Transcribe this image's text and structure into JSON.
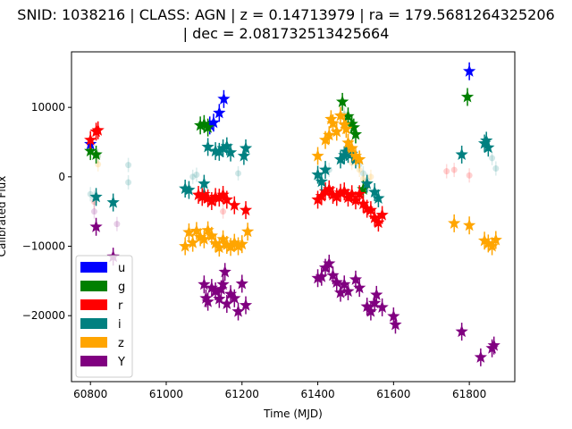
{
  "chart_data": {
    "type": "scatter",
    "title_line1": "SNID: 1038216 | CLASS: AGN | z = 0.14713979 | ra = 179.5681264325206",
    "title_line2": "| dec = 2.081732513425664",
    "xlabel": "Time (MJD)",
    "ylabel": "Calibrated Flux",
    "xlim": [
      60750,
      61920
    ],
    "ylim": [
      -29500,
      18000
    ],
    "xticks": [
      60800,
      61000,
      61200,
      61400,
      61600,
      61800
    ],
    "yticks": [
      -20000,
      -10000,
      0,
      10000
    ],
    "ytick_labels": [
      "−20000",
      "−10000",
      "0",
      "10000"
    ],
    "grid": false,
    "legend_position": "lower-left",
    "series": [
      {
        "name": "u",
        "color": "#0000ff",
        "detections": [
          [
            60800,
            4700
          ],
          [
            61115,
            7400
          ],
          [
            61125,
            7800
          ],
          [
            61140,
            9200
          ],
          [
            61152,
            11200
          ],
          [
            61800,
            15200
          ]
        ],
        "faint": [
          [
            60800,
            5000
          ]
        ]
      },
      {
        "name": "g",
        "color": "#008000",
        "detections": [
          [
            60800,
            3700
          ],
          [
            60815,
            3200
          ],
          [
            61090,
            7400
          ],
          [
            61100,
            7600
          ],
          [
            61110,
            7100
          ],
          [
            61465,
            10800
          ],
          [
            61480,
            8700
          ],
          [
            61490,
            7600
          ],
          [
            61495,
            7100
          ],
          [
            61500,
            6100
          ],
          [
            61520,
            -1800
          ],
          [
            61795,
            11500
          ]
        ],
        "faint": [
          [
            60820,
            3000
          ],
          [
            61470,
            9000
          ]
        ]
      },
      {
        "name": "r",
        "color": "#ff0000",
        "detections": [
          [
            60800,
            5300
          ],
          [
            60815,
            6500
          ],
          [
            60820,
            6700
          ],
          [
            61085,
            -2600
          ],
          [
            61095,
            -2900
          ],
          [
            61100,
            -2500
          ],
          [
            61110,
            -3100
          ],
          [
            61120,
            -3500
          ],
          [
            61130,
            -2900
          ],
          [
            61140,
            -3000
          ],
          [
            61150,
            -2600
          ],
          [
            61160,
            -3300
          ],
          [
            61180,
            -4100
          ],
          [
            61210,
            -4800
          ],
          [
            61400,
            -3300
          ],
          [
            61410,
            -2800
          ],
          [
            61420,
            -2100
          ],
          [
            61430,
            -1800
          ],
          [
            61440,
            -2600
          ],
          [
            61450,
            -2900
          ],
          [
            61460,
            -2300
          ],
          [
            61470,
            -2100
          ],
          [
            61480,
            -3000
          ],
          [
            61490,
            -2500
          ],
          [
            61500,
            -3400
          ],
          [
            61510,
            -2500
          ],
          [
            61520,
            -3900
          ],
          [
            61530,
            -4600
          ],
          [
            61540,
            -4800
          ],
          [
            61550,
            -5900
          ],
          [
            61560,
            -6600
          ],
          [
            61570,
            -5500
          ]
        ],
        "faint": [
          [
            60810,
            -3600
          ],
          [
            61150,
            -5000
          ],
          [
            61740,
            800
          ],
          [
            61760,
            1000
          ],
          [
            61800,
            200
          ]
        ]
      },
      {
        "name": "i",
        "color": "#008080",
        "detections": [
          [
            60815,
            -2900
          ],
          [
            60860,
            -3700
          ],
          [
            61050,
            -1700
          ],
          [
            61060,
            -1900
          ],
          [
            61100,
            -1000
          ],
          [
            61110,
            4300
          ],
          [
            61130,
            3700
          ],
          [
            61140,
            3600
          ],
          [
            61150,
            4100
          ],
          [
            61160,
            4400
          ],
          [
            61170,
            3500
          ],
          [
            61205,
            3000
          ],
          [
            61210,
            4100
          ],
          [
            61400,
            300
          ],
          [
            61410,
            -700
          ],
          [
            61420,
            1000
          ],
          [
            61460,
            2500
          ],
          [
            61470,
            3100
          ],
          [
            61475,
            3600
          ],
          [
            61480,
            3300
          ],
          [
            61485,
            4000
          ],
          [
            61490,
            3300
          ],
          [
            61500,
            2500
          ],
          [
            61530,
            -1000
          ],
          [
            61550,
            -2200
          ],
          [
            61560,
            -3100
          ],
          [
            61780,
            3200
          ],
          [
            61840,
            4800
          ],
          [
            61845,
            5200
          ],
          [
            61850,
            4200
          ]
        ],
        "faint": [
          [
            60800,
            -2500
          ],
          [
            60810,
            -3000
          ],
          [
            60900,
            1700
          ],
          [
            60900,
            -800
          ],
          [
            61060,
            -1700
          ],
          [
            61070,
            0
          ],
          [
            61080,
            300
          ],
          [
            61190,
            500
          ],
          [
            61400,
            0
          ],
          [
            61430,
            1000
          ],
          [
            61510,
            1800
          ],
          [
            61520,
            500
          ],
          [
            61530,
            -500
          ],
          [
            61860,
            2700
          ],
          [
            61870,
            1200
          ]
        ]
      },
      {
        "name": "z",
        "color": "#ffa500",
        "detections": [
          [
            61050,
            -10000
          ],
          [
            61060,
            -8000
          ],
          [
            61070,
            -9500
          ],
          [
            61080,
            -7800
          ],
          [
            61090,
            -8700
          ],
          [
            61100,
            -9000
          ],
          [
            61110,
            -7700
          ],
          [
            61120,
            -8500
          ],
          [
            61130,
            -9600
          ],
          [
            61140,
            -10200
          ],
          [
            61150,
            -9000
          ],
          [
            61160,
            -9800
          ],
          [
            61170,
            -10100
          ],
          [
            61180,
            -9500
          ],
          [
            61190,
            -10000
          ],
          [
            61200,
            -9700
          ],
          [
            61215,
            -7900
          ],
          [
            61400,
            3000
          ],
          [
            61420,
            5300
          ],
          [
            61430,
            6000
          ],
          [
            61435,
            8300
          ],
          [
            61440,
            7700
          ],
          [
            61450,
            6500
          ],
          [
            61460,
            8800
          ],
          [
            61470,
            7500
          ],
          [
            61475,
            6900
          ],
          [
            61480,
            4900
          ],
          [
            61490,
            4100
          ],
          [
            61500,
            3000
          ],
          [
            61510,
            2500
          ],
          [
            61760,
            -6700
          ],
          [
            61800,
            -7000
          ],
          [
            61840,
            -9200
          ],
          [
            61850,
            -9600
          ],
          [
            61860,
            -10000
          ],
          [
            61870,
            -9100
          ]
        ],
        "faint": [
          [
            60820,
            1800
          ],
          [
            61490,
            2000
          ],
          [
            61510,
            1000
          ],
          [
            61520,
            -300
          ],
          [
            61530,
            -1300
          ],
          [
            61540,
            0
          ]
        ]
      },
      {
        "name": "Y",
        "color": "#800080",
        "detections": [
          [
            60815,
            -7200
          ],
          [
            60860,
            -11500
          ],
          [
            61100,
            -15500
          ],
          [
            61105,
            -17500
          ],
          [
            61110,
            -18000
          ],
          [
            61120,
            -16000
          ],
          [
            61130,
            -16500
          ],
          [
            61140,
            -17600
          ],
          [
            61145,
            -16200
          ],
          [
            61150,
            -15500
          ],
          [
            61155,
            -13700
          ],
          [
            61160,
            -18300
          ],
          [
            61170,
            -16900
          ],
          [
            61180,
            -17500
          ],
          [
            61190,
            -19400
          ],
          [
            61200,
            -15400
          ],
          [
            61210,
            -18500
          ],
          [
            61400,
            -14600
          ],
          [
            61410,
            -14400
          ],
          [
            61420,
            -13100
          ],
          [
            61430,
            -12500
          ],
          [
            61440,
            -14200
          ],
          [
            61450,
            -15200
          ],
          [
            61460,
            -16700
          ],
          [
            61470,
            -15500
          ],
          [
            61480,
            -16500
          ],
          [
            61500,
            -14800
          ],
          [
            61510,
            -16000
          ],
          [
            61530,
            -18700
          ],
          [
            61540,
            -19400
          ],
          [
            61550,
            -18200
          ],
          [
            61555,
            -17000
          ],
          [
            61570,
            -18800
          ],
          [
            61600,
            -20100
          ],
          [
            61605,
            -21300
          ],
          [
            61780,
            -22300
          ],
          [
            61830,
            -26000
          ],
          [
            61860,
            -24700
          ],
          [
            61865,
            -24300
          ]
        ],
        "faint": [
          [
            60810,
            -5000
          ],
          [
            60870,
            -6800
          ]
        ]
      }
    ]
  }
}
